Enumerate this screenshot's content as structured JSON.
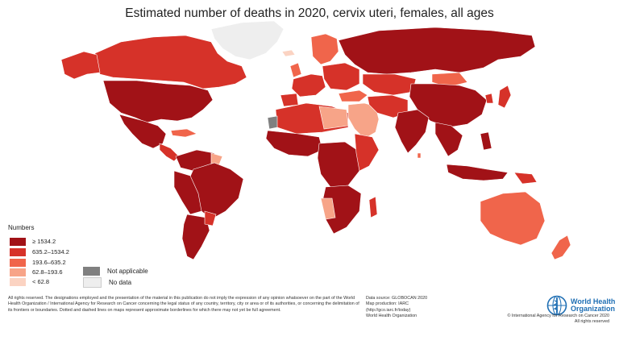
{
  "title": "Estimated number of deaths in 2020, cervix uteri, females, all ages",
  "legend": {
    "title": "Numbers",
    "classes": [
      {
        "label": "≥ 1534.2",
        "color": "#a11217"
      },
      {
        "label": "635.2–1534.2",
        "color": "#d63229"
      },
      {
        "label": "193.6–635.2",
        "color": "#f0654b"
      },
      {
        "label": "62.8–193.6",
        "color": "#f7a488"
      },
      {
        "label": "< 62.8",
        "color": "#fbd3c2"
      }
    ],
    "not_applicable": {
      "label": "Not applicable",
      "color": "#808080"
    },
    "no_data": {
      "label": "No data",
      "color": "#eeeeee"
    }
  },
  "disclaimer": "All rights reserved. The designations employed and the presentation of the material in this publication do not imply the expression of any opinion whatsoever on the part of the World Health Organization / International Agency for Research on Cancer concerning the legal status of any country, territory, city or area or of its authorities, or concerning the delimitation of its frontiers or boundaries. Dotted and dashed lines on maps represent approximate borderlines for which there may not yet be full agreement.",
  "source": {
    "line1": "Data source: GLOBOCAN 2020",
    "line2": "Map production: IARC",
    "line3": "(http://gco.iarc.fr/today)",
    "line4": "World Health Organization"
  },
  "who": {
    "line1": "World Health",
    "line2": "Organization"
  },
  "copyright": {
    "line1": "© International Agency for Research on Cancer 2020",
    "line2": "All rights reserved"
  },
  "colors": {
    "ocean": "#ffffff",
    "border": "#ffffff"
  }
}
